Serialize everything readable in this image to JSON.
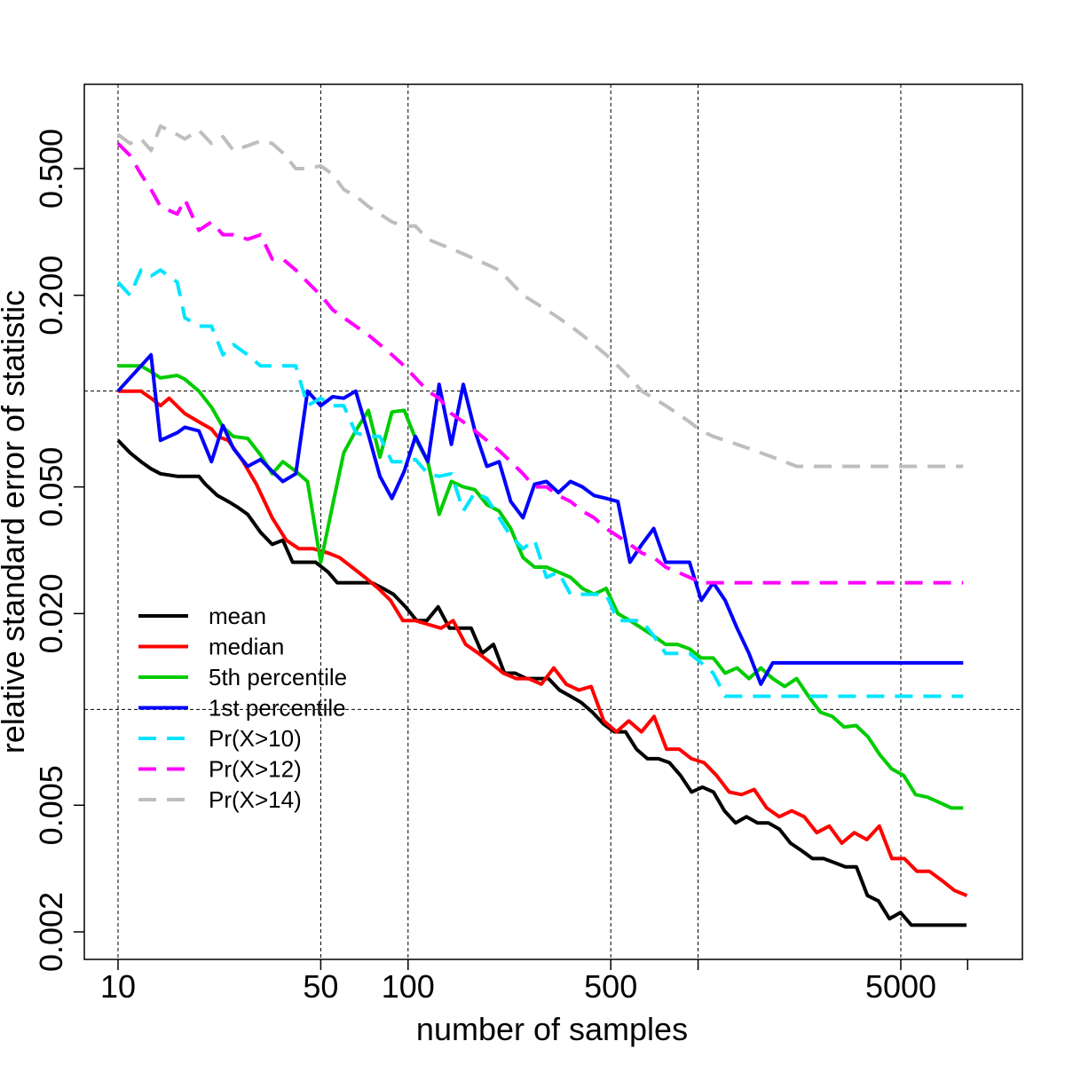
{
  "chart_data": {
    "type": "line",
    "xlabel": "number of samples",
    "ylabel": "relative standard error of statistic",
    "x_scale": "log",
    "y_scale": "log",
    "xlim": [
      10,
      8500
    ],
    "ylim": [
      0.0017,
      1.05
    ],
    "x_ticks": [
      10,
      50,
      100,
      500,
      1000,
      5000,
      8500
    ],
    "x_tick_labels": [
      "10",
      "50",
      "100",
      "500",
      "",
      "5000",
      ""
    ],
    "y_ticks": [
      0.002,
      0.005,
      0.02,
      0.05,
      0.2,
      0.5
    ],
    "y_tick_labels": [
      "0.002",
      "0.005",
      "0.020",
      "0.050",
      "0.200",
      "0.500"
    ],
    "grid_x": [
      10,
      50,
      100,
      500,
      1000,
      5000
    ],
    "grid_y": [
      0.01,
      0.1
    ],
    "legend_position": "bottom-left",
    "series": [
      {
        "name": "mean",
        "color": "#000000",
        "dash": "solid",
        "x": [
          10,
          11,
          12,
          13,
          14,
          16,
          17,
          19,
          20,
          22,
          24,
          26,
          28,
          31,
          34,
          37,
          40,
          44,
          48,
          53,
          57,
          63,
          69,
          75,
          82,
          89,
          98,
          107,
          116,
          127,
          139,
          151,
          165,
          180,
          197,
          215,
          234,
          256,
          279,
          305,
          333,
          363,
          396,
          432,
          472,
          515,
          562,
          613,
          669,
          730,
          797,
          870,
          949,
          1035,
          1130,
          1233,
          1346,
          1468,
          1602,
          1748,
          1908,
          2082,
          2272,
          2479,
          2706,
          2953,
          3222,
          3516,
          3837,
          4187,
          4569,
          4986,
          5441,
          5938,
          6480,
          7071,
          7716,
          8421
        ],
        "y": [
          0.07,
          0.064,
          0.06,
          0.057,
          0.055,
          0.054,
          0.054,
          0.054,
          0.051,
          0.047,
          0.045,
          0.043,
          0.041,
          0.036,
          0.033,
          0.034,
          0.029,
          0.029,
          0.029,
          0.027,
          0.025,
          0.025,
          0.025,
          0.025,
          0.024,
          0.023,
          0.021,
          0.019,
          0.019,
          0.021,
          0.018,
          0.018,
          0.018,
          0.015,
          0.016,
          0.013,
          0.013,
          0.0125,
          0.0125,
          0.0125,
          0.0115,
          0.011,
          0.0105,
          0.0098,
          0.009,
          0.0085,
          0.0085,
          0.0075,
          0.007,
          0.007,
          0.0068,
          0.0062,
          0.0055,
          0.0057,
          0.0055,
          0.0048,
          0.0044,
          0.0046,
          0.0044,
          0.0044,
          0.0042,
          0.0038,
          0.0036,
          0.0034,
          0.0034,
          0.0033,
          0.0032,
          0.0032,
          0.0026,
          0.0025,
          0.0022,
          0.0023,
          0.0021,
          0.0021,
          0.0021,
          0.0021,
          0.0021,
          0.0021
        ]
      },
      {
        "name": "median",
        "color": "#ff0000",
        "dash": "solid",
        "x": [
          10,
          12,
          13,
          14,
          15,
          17,
          19,
          21,
          22,
          24,
          27,
          30,
          34,
          38,
          42,
          47,
          53,
          58,
          64,
          71,
          79,
          87,
          96,
          106,
          117,
          130,
          143,
          158,
          175,
          193,
          213,
          236,
          260,
          288,
          318,
          351,
          388,
          428,
          473,
          523,
          577,
          638,
          705,
          778,
          860,
          949,
          1049,
          1158,
          1280,
          1413,
          1561,
          1724,
          1904,
          2103,
          2323,
          2566,
          2834,
          3130,
          3457,
          3818,
          4217,
          4657,
          5144,
          5681,
          6274,
          6929,
          7653,
          8452
        ],
        "y": [
          0.1,
          0.1,
          0.095,
          0.09,
          0.095,
          0.085,
          0.08,
          0.076,
          0.072,
          0.07,
          0.06,
          0.051,
          0.04,
          0.034,
          0.032,
          0.032,
          0.031,
          0.03,
          0.028,
          0.026,
          0.024,
          0.022,
          0.019,
          0.019,
          0.0185,
          0.018,
          0.019,
          0.016,
          0.015,
          0.014,
          0.013,
          0.0125,
          0.0125,
          0.012,
          0.0135,
          0.012,
          0.0115,
          0.0118,
          0.0092,
          0.0085,
          0.0092,
          0.0085,
          0.0095,
          0.0075,
          0.0075,
          0.007,
          0.0068,
          0.0062,
          0.0055,
          0.0054,
          0.0056,
          0.0049,
          0.0046,
          0.0048,
          0.0046,
          0.0041,
          0.0043,
          0.0038,
          0.0041,
          0.0039,
          0.0043,
          0.0034,
          0.0034,
          0.0031,
          0.0031,
          0.0029,
          0.0027,
          0.0026
        ]
      },
      {
        "name": "5th percentile",
        "color": "#00cc00",
        "dash": "solid",
        "x": [
          10,
          11,
          12,
          13,
          14,
          16,
          17,
          19,
          21,
          23,
          25,
          28,
          31,
          34,
          37,
          41,
          45,
          50,
          55,
          60,
          66,
          73,
          80,
          88,
          97,
          106,
          117,
          128,
          141,
          155,
          170,
          187,
          206,
          226,
          249,
          273,
          300,
          330,
          363,
          399,
          438,
          482,
          529,
          582,
          640,
          703,
          773,
          849,
          934,
          1026,
          1128,
          1240,
          1363,
          1498,
          1646,
          1809,
          1989,
          2186,
          2402,
          2640,
          2902,
          3190,
          3506,
          3853,
          4235,
          4654,
          5116,
          5622,
          6179,
          6792,
          7465,
          8204
        ],
        "y": [
          0.12,
          0.12,
          0.12,
          0.115,
          0.11,
          0.112,
          0.109,
          0.1,
          0.089,
          0.077,
          0.072,
          0.071,
          0.063,
          0.055,
          0.06,
          0.056,
          0.052,
          0.029,
          0.044,
          0.064,
          0.075,
          0.087,
          0.062,
          0.086,
          0.087,
          0.071,
          0.06,
          0.041,
          0.052,
          0.05,
          0.049,
          0.044,
          0.042,
          0.037,
          0.03,
          0.028,
          0.028,
          0.027,
          0.026,
          0.024,
          0.023,
          0.024,
          0.02,
          0.019,
          0.018,
          0.017,
          0.016,
          0.016,
          0.0155,
          0.0145,
          0.0145,
          0.013,
          0.0135,
          0.0125,
          0.0135,
          0.0125,
          0.0118,
          0.0125,
          0.011,
          0.0098,
          0.0095,
          0.0088,
          0.0089,
          0.0082,
          0.0072,
          0.0065,
          0.0062,
          0.0054,
          0.0053,
          0.0051,
          0.0049,
          0.0049
        ]
      },
      {
        "name": "1st percentile",
        "color": "#0000ff",
        "dash": "solid",
        "x": [
          10,
          11,
          12,
          13,
          14,
          16,
          17,
          19,
          21,
          23,
          25,
          28,
          31,
          34,
          37,
          41,
          45,
          50,
          55,
          60,
          66,
          73,
          80,
          88,
          97,
          106,
          117,
          128,
          141,
          155,
          170,
          187,
          206,
          226,
          249,
          273,
          300,
          330,
          363,
          399,
          438,
          482,
          529,
          582,
          640,
          703,
          773,
          849,
          934,
          1026,
          1128,
          1240,
          1363,
          1498,
          1646,
          1809,
          1989,
          2186,
          2402,
          2640,
          2902,
          3190,
          3506,
          3853,
          4235,
          4654,
          5116,
          5622,
          6179,
          6792,
          7465,
          8204
        ],
        "y": [
          0.1,
          0.11,
          0.12,
          0.13,
          0.07,
          0.074,
          0.077,
          0.075,
          0.06,
          0.078,
          0.066,
          0.058,
          0.061,
          0.056,
          0.052,
          0.055,
          0.1,
          0.09,
          0.096,
          0.095,
          0.1,
          0.073,
          0.054,
          0.046,
          0.056,
          0.072,
          0.06,
          0.105,
          0.068,
          0.105,
          0.075,
          0.058,
          0.06,
          0.045,
          0.04,
          0.051,
          0.052,
          0.048,
          0.052,
          0.05,
          0.047,
          0.046,
          0.045,
          0.029,
          0.033,
          0.037,
          0.029,
          0.029,
          0.029,
          0.022,
          0.025,
          0.022,
          0.018,
          0.015,
          0.012,
          0.014,
          0.014,
          0.014,
          0.014,
          0.014,
          0.014,
          0.014,
          0.014,
          0.014,
          0.014,
          0.014,
          0.014,
          0.014,
          0.014,
          0.014,
          0.014,
          0.014
        ]
      },
      {
        "name": "Pr(X>10)",
        "color": "#00e5ff",
        "dash": "dashed",
        "x": [
          10,
          11,
          12,
          13,
          14,
          16,
          17,
          19,
          21,
          23,
          25,
          28,
          31,
          34,
          37,
          41,
          45,
          50,
          55,
          60,
          66,
          73,
          80,
          88,
          97,
          106,
          117,
          128,
          141,
          155,
          170,
          187,
          206,
          226,
          249,
          273,
          300,
          330,
          363,
          399,
          438,
          482,
          529,
          582,
          640,
          703,
          773,
          849,
          934,
          1026,
          1128,
          1240,
          1363,
          1498,
          1646,
          1809,
          1989,
          2186,
          2402,
          2640,
          2902,
          3190,
          3506,
          3853,
          4235,
          4654,
          5116,
          5622,
          6179,
          6792,
          7465,
          8204
        ],
        "y": [
          0.22,
          0.2,
          0.24,
          0.23,
          0.24,
          0.22,
          0.17,
          0.16,
          0.16,
          0.13,
          0.14,
          0.13,
          0.12,
          0.12,
          0.12,
          0.12,
          0.09,
          0.095,
          0.09,
          0.09,
          0.074,
          0.072,
          0.072,
          0.06,
          0.06,
          0.061,
          0.055,
          0.054,
          0.055,
          0.042,
          0.048,
          0.046,
          0.04,
          0.035,
          0.032,
          0.034,
          0.026,
          0.027,
          0.023,
          0.023,
          0.023,
          0.023,
          0.019,
          0.019,
          0.019,
          0.017,
          0.015,
          0.015,
          0.015,
          0.014,
          0.013,
          0.011,
          0.011,
          0.011,
          0.011,
          0.011,
          0.011,
          0.011,
          0.011,
          0.011,
          0.011,
          0.011,
          0.011,
          0.011,
          0.011,
          0.011,
          0.011,
          0.011,
          0.011,
          0.011,
          0.011,
          0.011
        ]
      },
      {
        "name": "Pr(X>12)",
        "color": "#ff00ff",
        "dash": "dashed",
        "x": [
          10,
          11,
          12,
          13,
          14,
          16,
          17,
          19,
          21,
          23,
          25,
          28,
          31,
          34,
          37,
          41,
          45,
          50,
          55,
          60,
          66,
          73,
          80,
          88,
          97,
          106,
          117,
          128,
          141,
          155,
          170,
          187,
          206,
          226,
          249,
          273,
          300,
          330,
          363,
          399,
          438,
          482,
          529,
          582,
          640,
          703,
          773,
          849,
          934,
          1026,
          1128,
          1240,
          1363,
          1498,
          1646,
          1809,
          1989,
          2186,
          2402,
          2640,
          2902,
          3190,
          3506,
          3853,
          4235,
          4654,
          5116,
          5622,
          6179,
          6792,
          7465,
          8204
        ],
        "y": [
          0.6,
          0.55,
          0.48,
          0.43,
          0.38,
          0.36,
          0.4,
          0.32,
          0.34,
          0.31,
          0.31,
          0.3,
          0.31,
          0.26,
          0.26,
          0.24,
          0.22,
          0.2,
          0.18,
          0.17,
          0.16,
          0.15,
          0.14,
          0.13,
          0.12,
          0.11,
          0.1,
          0.095,
          0.085,
          0.08,
          0.075,
          0.07,
          0.065,
          0.06,
          0.055,
          0.05,
          0.05,
          0.047,
          0.045,
          0.042,
          0.04,
          0.037,
          0.035,
          0.033,
          0.031,
          0.03,
          0.028,
          0.027,
          0.026,
          0.025,
          0.025,
          0.025,
          0.025,
          0.025,
          0.025,
          0.025,
          0.025,
          0.025,
          0.025,
          0.025,
          0.025,
          0.025,
          0.025,
          0.025,
          0.025,
          0.025,
          0.025,
          0.025,
          0.025,
          0.025,
          0.025,
          0.025
        ]
      },
      {
        "name": "Pr(X>14)",
        "color": "#bebebe",
        "dash": "dashed",
        "x": [
          10,
          11,
          12,
          13,
          14,
          16,
          17,
          19,
          21,
          23,
          25,
          28,
          31,
          34,
          37,
          41,
          45,
          50,
          55,
          60,
          66,
          73,
          80,
          88,
          97,
          106,
          117,
          128,
          141,
          155,
          170,
          187,
          206,
          226,
          249,
          273,
          300,
          330,
          363,
          399,
          438,
          482,
          529,
          582,
          640,
          703,
          773,
          849,
          934,
          1026,
          1128,
          1240,
          1363,
          1498,
          1646,
          1809,
          1989,
          2186,
          2402,
          2640,
          2902,
          3190,
          3506,
          3853,
          4235,
          4654,
          5116,
          5622,
          6179,
          6792,
          7465,
          8204
        ],
        "y": [
          0.64,
          0.6,
          0.62,
          0.57,
          0.68,
          0.64,
          0.62,
          0.66,
          0.6,
          0.63,
          0.57,
          0.59,
          0.61,
          0.6,
          0.56,
          0.5,
          0.5,
          0.51,
          0.48,
          0.43,
          0.41,
          0.38,
          0.36,
          0.34,
          0.33,
          0.33,
          0.3,
          0.29,
          0.28,
          0.27,
          0.26,
          0.25,
          0.24,
          0.22,
          0.2,
          0.19,
          0.18,
          0.17,
          0.16,
          0.15,
          0.14,
          0.13,
          0.12,
          0.11,
          0.1,
          0.095,
          0.09,
          0.085,
          0.08,
          0.075,
          0.072,
          0.07,
          0.068,
          0.066,
          0.064,
          0.062,
          0.06,
          0.058,
          0.058,
          0.058,
          0.058,
          0.058,
          0.058,
          0.058,
          0.058,
          0.058,
          0.058,
          0.058,
          0.058,
          0.058,
          0.058,
          0.058
        ]
      }
    ]
  }
}
